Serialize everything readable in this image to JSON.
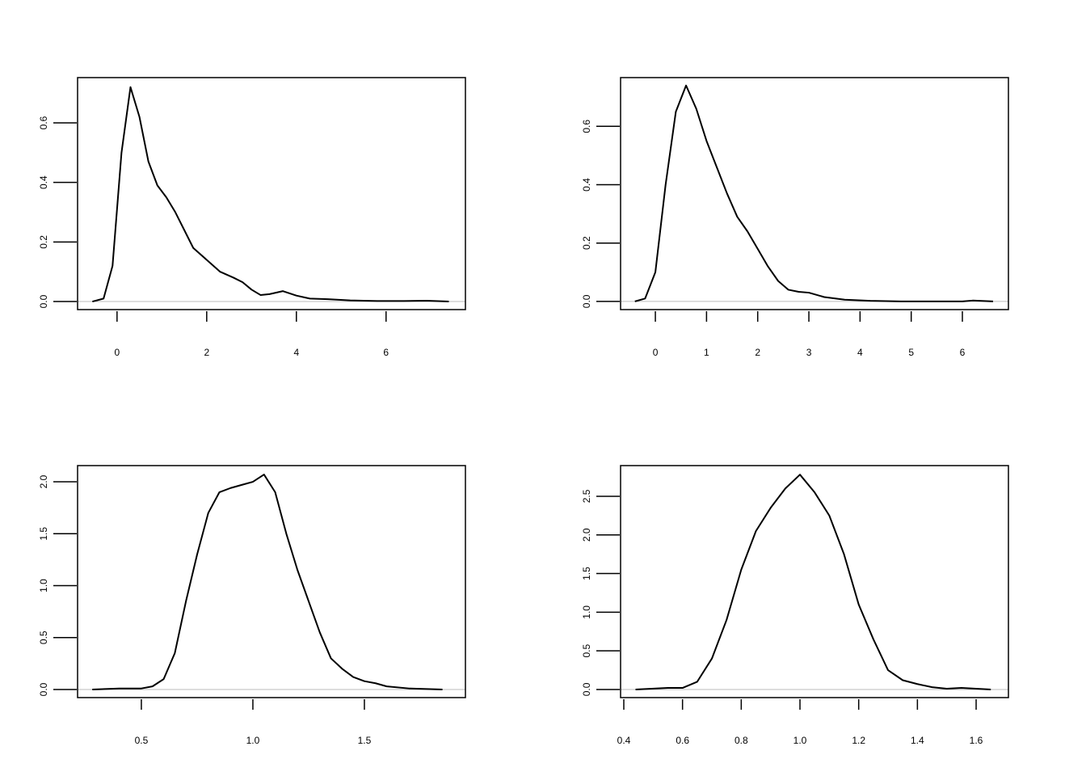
{
  "chart_data": [
    {
      "type": "line",
      "color": "#000000",
      "zero_line": true,
      "x": [
        -0.55,
        -0.3,
        -0.1,
        0.1,
        0.3,
        0.5,
        0.7,
        0.9,
        1.1,
        1.3,
        1.5,
        1.7,
        2.0,
        2.3,
        2.6,
        2.8,
        3.0,
        3.2,
        3.4,
        3.7,
        4.0,
        4.3,
        4.7,
        5.2,
        5.8,
        6.4,
        6.9,
        7.4
      ],
      "values": [
        0,
        0.01,
        0.12,
        0.5,
        0.72,
        0.62,
        0.47,
        0.39,
        0.35,
        0.3,
        0.24,
        0.18,
        0.14,
        0.1,
        0.08,
        0.065,
        0.04,
        0.022,
        0.025,
        0.035,
        0.02,
        0.01,
        0.008,
        0.004,
        0.002,
        0.002,
        0.003,
        0
      ],
      "xlim": [
        -0.88,
        7.77
      ],
      "ylim": [
        -0.027,
        0.752
      ],
      "xticks": [
        0,
        2,
        4,
        6
      ],
      "yticks": [
        {
          "value": 0,
          "label": "0.0"
        },
        0.2,
        0.4,
        0.6
      ]
    },
    {
      "type": "line",
      "color": "#000000",
      "zero_line": true,
      "x": [
        -0.4,
        -0.2,
        0,
        0.2,
        0.4,
        0.6,
        0.8,
        1.0,
        1.2,
        1.4,
        1.6,
        1.8,
        2.0,
        2.2,
        2.4,
        2.6,
        2.8,
        3.0,
        3.3,
        3.7,
        4.2,
        4.8,
        5.4,
        6.0,
        6.2,
        6.6
      ],
      "values": [
        0,
        0.01,
        0.1,
        0.4,
        0.65,
        0.74,
        0.66,
        0.55,
        0.46,
        0.37,
        0.29,
        0.24,
        0.18,
        0.12,
        0.07,
        0.04,
        0.033,
        0.03,
        0.015,
        0.006,
        0.002,
        0,
        0,
        0,
        0.003,
        0
      ],
      "xlim": [
        -0.68,
        6.9
      ],
      "ylim": [
        -0.028,
        0.767
      ],
      "xticks": [
        0,
        1,
        2,
        3,
        4,
        5,
        6
      ],
      "yticks": [
        {
          "value": 0,
          "label": "0.0"
        },
        0.2,
        0.4,
        0.6
      ]
    },
    {
      "type": "line",
      "color": "#000000",
      "zero_line": true,
      "x": [
        0.28,
        0.4,
        0.5,
        0.55,
        0.6,
        0.65,
        0.7,
        0.75,
        0.8,
        0.85,
        0.9,
        0.95,
        1.0,
        1.05,
        1.1,
        1.15,
        1.2,
        1.25,
        1.3,
        1.35,
        1.4,
        1.45,
        1.5,
        1.55,
        1.6,
        1.7,
        1.85
      ],
      "values": [
        0,
        0.01,
        0.01,
        0.03,
        0.1,
        0.35,
        0.85,
        1.3,
        1.7,
        1.9,
        1.94,
        1.97,
        2.0,
        2.07,
        1.9,
        1.5,
        1.15,
        0.85,
        0.55,
        0.3,
        0.2,
        0.12,
        0.08,
        0.06,
        0.03,
        0.01,
        0
      ],
      "xlim": [
        0.214,
        1.953
      ],
      "ylim": [
        -0.078,
        2.156
      ],
      "xticks": [
        0.5,
        {
          "value": 1,
          "label": "1.0"
        },
        1.5
      ],
      "yticks": [
        {
          "value": 0,
          "label": "0.0"
        },
        0.5,
        {
          "value": 1,
          "label": "1.0"
        },
        1.5,
        {
          "value": 2,
          "label": "2.0"
        }
      ]
    },
    {
      "type": "line",
      "color": "#000000",
      "zero_line": true,
      "x": [
        0.44,
        0.55,
        0.6,
        0.65,
        0.7,
        0.75,
        0.8,
        0.85,
        0.9,
        0.95,
        1.0,
        1.05,
        1.1,
        1.15,
        1.2,
        1.25,
        1.3,
        1.35,
        1.4,
        1.45,
        1.5,
        1.55,
        1.6,
        1.65
      ],
      "values": [
        0,
        0.02,
        0.02,
        0.1,
        0.4,
        0.9,
        1.55,
        2.05,
        2.35,
        2.6,
        2.78,
        2.55,
        2.25,
        1.75,
        1.1,
        0.65,
        0.25,
        0.12,
        0.07,
        0.03,
        0.01,
        0.02,
        0.01,
        0
      ],
      "xlim": [
        0.389,
        1.71
      ],
      "ylim": [
        -0.105,
        2.897
      ],
      "xticks": [
        0.4,
        0.6,
        0.8,
        {
          "value": 1,
          "label": "1.0"
        },
        1.2,
        1.4,
        1.6
      ],
      "yticks": [
        {
          "value": 0,
          "label": "0.0"
        },
        0.5,
        {
          "value": 1,
          "label": "1.0"
        },
        1.5,
        {
          "value": 2,
          "label": "2.0"
        },
        2.5
      ]
    }
  ]
}
